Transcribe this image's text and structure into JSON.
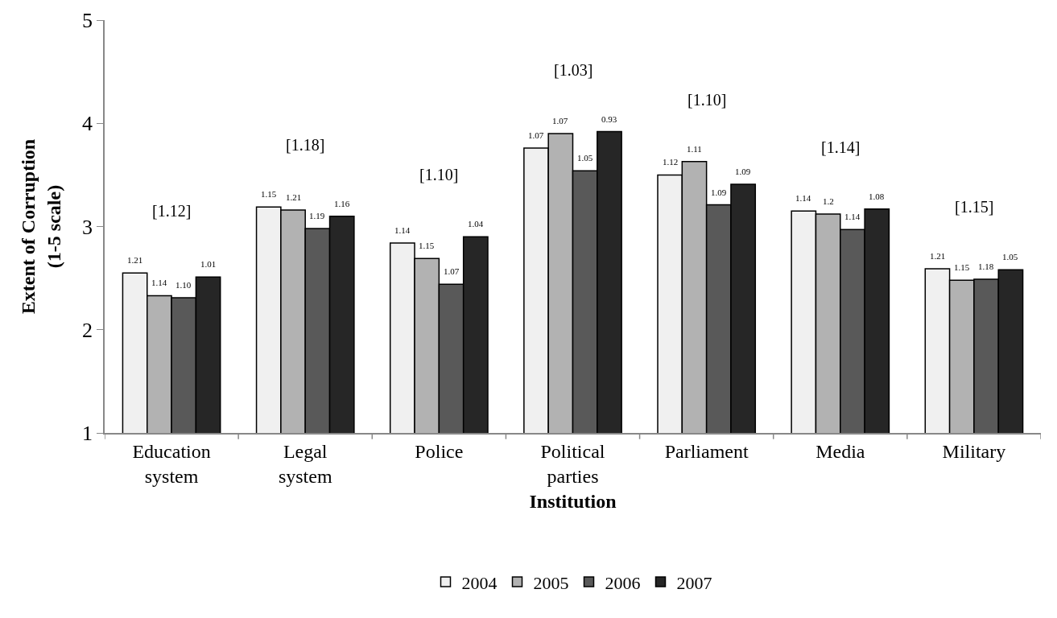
{
  "chart_data": {
    "type": "bar",
    "xlabel": "Institution",
    "ylabel": "Extent of Corruption\n(1-5 scale)",
    "categories": [
      "Education\nsystem",
      "Legal\nsystem",
      "Police",
      "Political\nparties",
      "Parliament",
      "Media",
      "Military"
    ],
    "series": [
      {
        "name": "2004",
        "color": "#f0f0f0",
        "values": [
          2.55,
          3.19,
          2.84,
          3.76,
          3.5,
          3.15,
          2.59
        ]
      },
      {
        "name": "2005",
        "color": "#b2b2b2",
        "values": [
          2.33,
          3.16,
          2.69,
          3.9,
          3.63,
          3.12,
          2.48
        ]
      },
      {
        "name": "2006",
        "color": "#595959",
        "values": [
          2.31,
          2.98,
          2.44,
          3.54,
          3.21,
          2.97,
          2.49
        ]
      },
      {
        "name": "2007",
        "color": "#262626",
        "values": [
          2.51,
          3.1,
          2.9,
          3.92,
          3.41,
          3.17,
          2.58
        ]
      }
    ],
    "annotations": [
      "[1.12]",
      "[1.18]",
      "[1.10]",
      "[1.03]",
      "[1.10]",
      "[1.14]",
      "[1.15]",
      "1.21",
      "1.14",
      "1.10",
      "1.01",
      "1.15",
      "1.21",
      "1.19",
      "1.16",
      "1.14",
      "1.15",
      "1.07",
      "1.04",
      "1.07",
      "1.07",
      "1.05",
      "0.93",
      "1.12",
      "1.11",
      "1.09",
      "1.09",
      "1.14",
      "1.2",
      "1.14",
      "1.08",
      "1.21",
      "1.15",
      "1.18",
      "1.05"
    ],
    "ylim": [
      1,
      5
    ],
    "yticks": [
      1,
      2,
      3,
      4,
      5
    ],
    "legend": "bottom"
  }
}
